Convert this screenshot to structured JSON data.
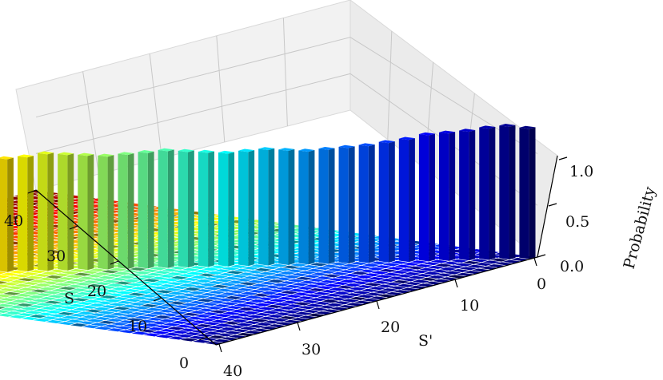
{
  "chart_data": {
    "type": "bar3d",
    "title": "",
    "xlabel": "S'",
    "ylabel": "S",
    "zlabel": "Probability",
    "x_ticks": [
      "0",
      "10",
      "20",
      "30",
      "40"
    ],
    "y_ticks": [
      "0",
      "10",
      "20",
      "30",
      "40"
    ],
    "z_ticks": [
      "0.0",
      "0.5",
      "1.0"
    ],
    "xlim": [
      0,
      40
    ],
    "ylim": [
      0,
      40
    ],
    "zlim": [
      0,
      1.1
    ],
    "grid": true,
    "colormap": "jet",
    "description_of_values": "Probability of transition S -> S'; tall bars lie on the diagonal S' = S, off-diagonal cells are near zero.",
    "diagonal_probability": [
      0.98,
      1.0,
      0.99,
      0.97,
      0.96,
      0.95,
      0.92,
      0.9,
      0.88,
      0.87,
      0.86,
      0.85,
      0.86,
      0.87,
      0.86,
      0.85,
      0.86,
      0.87,
      0.88,
      0.87,
      0.86,
      0.85,
      0.86,
      0.87,
      0.88,
      0.86,
      0.85,
      0.86,
      0.87,
      0.88,
      0.86,
      0.85,
      0.84,
      0.83,
      0.82,
      0.83,
      0.84,
      0.85,
      0.86,
      0.87,
      0.97
    ],
    "off_diagonal_probability": 0.0
  }
}
